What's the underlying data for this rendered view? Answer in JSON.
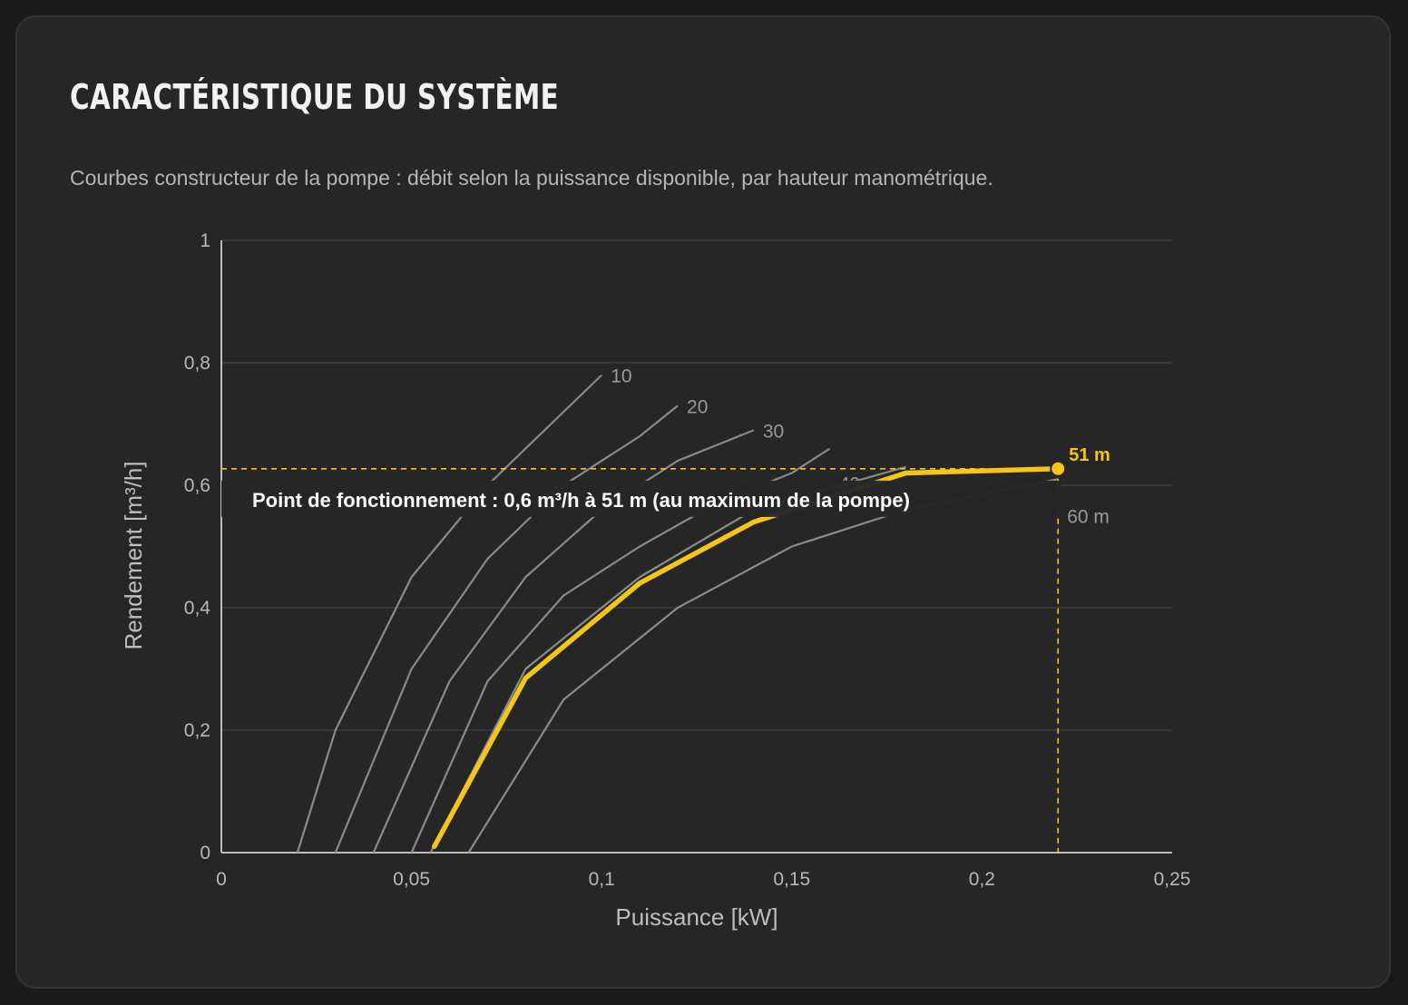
{
  "card": {
    "title": "Caractéristique du système",
    "subtitle": "Courbes constructeur de la pompe : débit selon la puissance disponible, par hauteur manométrique."
  },
  "colors": {
    "background": "#262626",
    "grid": "#3a3a3a",
    "curves": "#8a8a8a",
    "accent": "#f5c518",
    "axis": "#bdbdbd"
  },
  "chart_data": {
    "type": "line",
    "title": "",
    "xlabel": "Puissance [kW]",
    "ylabel": "Rendement [m³/h]",
    "xlim": [
      0,
      0.25
    ],
    "ylim": [
      0,
      1
    ],
    "x_ticks": [
      {
        "value": 0,
        "label": "0"
      },
      {
        "value": 0.05,
        "label": "0,05"
      },
      {
        "value": 0.1,
        "label": "0,1"
      },
      {
        "value": 0.15,
        "label": "0,15"
      },
      {
        "value": 0.2,
        "label": "0,2"
      },
      {
        "value": 0.25,
        "label": "0,25"
      }
    ],
    "y_ticks": [
      {
        "value": 0,
        "label": "0"
      },
      {
        "value": 0.2,
        "label": "0,2"
      },
      {
        "value": 0.4,
        "label": "0,4"
      },
      {
        "value": 0.6,
        "label": "0,6"
      },
      {
        "value": 0.8,
        "label": "0,8"
      },
      {
        "value": 1,
        "label": "1"
      }
    ],
    "grid": true,
    "series": [
      {
        "name": "10",
        "x": [
          0.02,
          0.03,
          0.05,
          0.07,
          0.1
        ],
        "y": [
          0,
          0.2,
          0.45,
          0.6,
          0.78
        ]
      },
      {
        "name": "20",
        "x": [
          0.03,
          0.05,
          0.07,
          0.09,
          0.11,
          0.12
        ],
        "y": [
          0,
          0.3,
          0.48,
          0.6,
          0.68,
          0.73
        ]
      },
      {
        "name": "30",
        "x": [
          0.04,
          0.06,
          0.08,
          0.1,
          0.12,
          0.14
        ],
        "y": [
          0,
          0.28,
          0.45,
          0.56,
          0.64,
          0.69
        ]
      },
      {
        "name": "40",
        "x": [
          0.05,
          0.07,
          0.09,
          0.11,
          0.13,
          0.15,
          0.16
        ],
        "y": [
          0,
          0.28,
          0.42,
          0.5,
          0.57,
          0.62,
          0.66
        ]
      },
      {
        "name": "",
        "x": [
          0.055,
          0.08,
          0.11,
          0.14,
          0.18
        ],
        "y": [
          0,
          0.3,
          0.45,
          0.56,
          0.63
        ]
      },
      {
        "name": "60 m",
        "x": [
          0.065,
          0.09,
          0.12,
          0.15,
          0.18,
          0.22
        ],
        "y": [
          0,
          0.25,
          0.4,
          0.5,
          0.56,
          0.61
        ]
      }
    ],
    "operating_curve": {
      "name": "51 m",
      "x": [
        0.056,
        0.08,
        0.11,
        0.14,
        0.18,
        0.22
      ],
      "y": [
        0.01,
        0.285,
        0.44,
        0.54,
        0.62,
        0.627
      ]
    },
    "operating_point": {
      "x": 0.22,
      "y": 0.627,
      "label": "51 m"
    },
    "annotation": "Point de fonctionnement : 0,6 m³/h à 51 m (au maximum de la pompe)"
  }
}
